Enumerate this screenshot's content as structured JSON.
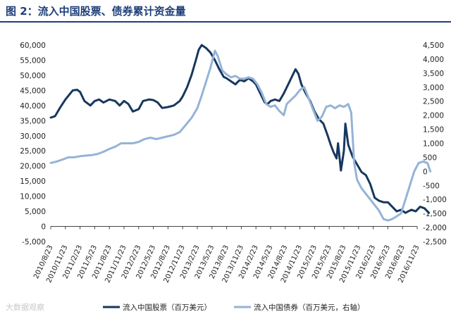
{
  "figure": {
    "title": "图 2：流入中国股票、债券累计资金量",
    "watermark": "大数据观察"
  },
  "chart_data": {
    "type": "line",
    "x_ticks": [
      "2010/8/23",
      "2010/11/23",
      "2011/2/23",
      "2011/5/23",
      "2011/8/23",
      "2011/11/23",
      "2012/2/23",
      "2012/5/23",
      "2012/8/23",
      "2012/11/23",
      "2013/2/23",
      "2013/5/23",
      "2013/8/23",
      "2013/11/23",
      "2014/2/23",
      "2014/5/23",
      "2014/8/23",
      "2014/11/23",
      "2015/2/23",
      "2015/5/23",
      "2015/8/23",
      "2015/11/23",
      "2016/2/23",
      "2016/5/23",
      "2016/8/23",
      "2016/11/23"
    ],
    "y_left": {
      "min": -5000,
      "max": 60000,
      "ticks": [
        "-5,000",
        "0",
        "5,000",
        "10,000",
        "15,000",
        "20,000",
        "25,000",
        "30,000",
        "35,000",
        "40,000",
        "45,000",
        "50,000",
        "55,000",
        "60,000"
      ]
    },
    "y_right": {
      "min": -2500,
      "max": 4500,
      "ticks": [
        "-2,500",
        "-2,000",
        "-1,500",
        "-1,000",
        "-500",
        "0",
        "500",
        "1,000",
        "1,500",
        "2,000",
        "2,500",
        "3,000",
        "3,500",
        "4,000",
        "4,500"
      ]
    },
    "legend_position": "bottom",
    "series": [
      {
        "name": "流入中国股票（百万美元）",
        "axis": "left",
        "color": "#17375e",
        "points": [
          [
            0,
            36000
          ],
          [
            0.3,
            36500
          ],
          [
            0.6,
            39000
          ],
          [
            1,
            42000
          ],
          [
            1.5,
            45000
          ],
          [
            1.8,
            45200
          ],
          [
            2,
            44500
          ],
          [
            2.3,
            41500
          ],
          [
            2.7,
            40000
          ],
          [
            3,
            41500
          ],
          [
            3.3,
            42000
          ],
          [
            3.6,
            41000
          ],
          [
            4,
            42000
          ],
          [
            4.4,
            41500
          ],
          [
            4.7,
            40000
          ],
          [
            5,
            41500
          ],
          [
            5.3,
            40500
          ],
          [
            5.6,
            38000
          ],
          [
            6,
            38800
          ],
          [
            6.3,
            41500
          ],
          [
            6.7,
            42000
          ],
          [
            7,
            41800
          ],
          [
            7.3,
            41000
          ],
          [
            7.6,
            39200
          ],
          [
            8,
            39500
          ],
          [
            8.4,
            40000
          ],
          [
            8.8,
            41500
          ],
          [
            9,
            43000
          ],
          [
            9.3,
            46000
          ],
          [
            9.6,
            50000
          ],
          [
            9.9,
            55000
          ],
          [
            10.1,
            58500
          ],
          [
            10.3,
            60000
          ],
          [
            10.6,
            59000
          ],
          [
            10.9,
            57500
          ],
          [
            11.2,
            55000
          ],
          [
            11.5,
            52000
          ],
          [
            11.8,
            49500
          ],
          [
            12,
            49000
          ],
          [
            12.3,
            48000
          ],
          [
            12.6,
            47000
          ],
          [
            12.9,
            48500
          ],
          [
            13.2,
            48000
          ],
          [
            13.5,
            49000
          ],
          [
            13.8,
            48000
          ],
          [
            14,
            47000
          ],
          [
            14.3,
            44000
          ],
          [
            14.6,
            41000
          ],
          [
            14.8,
            40500
          ],
          [
            15,
            41500
          ],
          [
            15.3,
            42000
          ],
          [
            15.6,
            41500
          ],
          [
            15.9,
            44000
          ],
          [
            16.2,
            47000
          ],
          [
            16.5,
            50000
          ],
          [
            16.7,
            52000
          ],
          [
            16.9,
            50500
          ],
          [
            17.1,
            47000
          ],
          [
            17.4,
            44000
          ],
          [
            17.7,
            41500
          ],
          [
            18,
            38000
          ],
          [
            18.3,
            35500
          ],
          [
            18.6,
            34000
          ],
          [
            18.9,
            30000
          ],
          [
            19.1,
            27000
          ],
          [
            19.3,
            24500
          ],
          [
            19.5,
            22500
          ],
          [
            19.6,
            27500
          ],
          [
            19.8,
            18500
          ],
          [
            20,
            25000
          ],
          [
            20.1,
            34000
          ],
          [
            20.3,
            27000
          ],
          [
            20.6,
            23000
          ],
          [
            20.9,
            20500
          ],
          [
            21.2,
            18000
          ],
          [
            21.5,
            17000
          ],
          [
            21.8,
            14000
          ],
          [
            22.1,
            9500
          ],
          [
            22.4,
            8500
          ],
          [
            22.7,
            8000
          ],
          [
            23,
            8000
          ],
          [
            23.3,
            6500
          ],
          [
            23.6,
            5000
          ],
          [
            23.9,
            5500
          ],
          [
            24.2,
            4500
          ],
          [
            24.6,
            5500
          ],
          [
            24.9,
            5000
          ],
          [
            25.2,
            6500
          ],
          [
            25.5,
            6000
          ],
          [
            25.8,
            4500
          ]
        ]
      },
      {
        "name": "流入中国债券（百万美元，右轴）",
        "axis": "right",
        "color": "#95b3d7",
        "points": [
          [
            0,
            300
          ],
          [
            0.4,
            350
          ],
          [
            0.8,
            420
          ],
          [
            1.2,
            500
          ],
          [
            1.6,
            500
          ],
          [
            2,
            540
          ],
          [
            2.4,
            560
          ],
          [
            2.8,
            580
          ],
          [
            3.2,
            620
          ],
          [
            3.6,
            700
          ],
          [
            4,
            800
          ],
          [
            4.4,
            880
          ],
          [
            4.8,
            1000
          ],
          [
            5.2,
            1000
          ],
          [
            5.6,
            1000
          ],
          [
            6,
            1050
          ],
          [
            6.4,
            1150
          ],
          [
            6.8,
            1200
          ],
          [
            7.2,
            1150
          ],
          [
            7.6,
            1200
          ],
          [
            8,
            1250
          ],
          [
            8.4,
            1300
          ],
          [
            8.8,
            1400
          ],
          [
            9.2,
            1650
          ],
          [
            9.6,
            1900
          ],
          [
            10,
            2250
          ],
          [
            10.3,
            2700
          ],
          [
            10.6,
            3200
          ],
          [
            10.9,
            3700
          ],
          [
            11.2,
            4300
          ],
          [
            11.4,
            4100
          ],
          [
            11.7,
            3600
          ],
          [
            12,
            3450
          ],
          [
            12.3,
            3350
          ],
          [
            12.6,
            3400
          ],
          [
            12.9,
            3300
          ],
          [
            13.2,
            3300
          ],
          [
            13.5,
            3350
          ],
          [
            13.8,
            3300
          ],
          [
            14.1,
            3100
          ],
          [
            14.4,
            2800
          ],
          [
            14.7,
            2400
          ],
          [
            15,
            2300
          ],
          [
            15.3,
            2350
          ],
          [
            15.6,
            2150
          ],
          [
            15.9,
            2000
          ],
          [
            16.1,
            2400
          ],
          [
            16.4,
            2550
          ],
          [
            16.7,
            2700
          ],
          [
            17,
            2900
          ],
          [
            17.3,
            3000
          ],
          [
            17.6,
            2600
          ],
          [
            17.9,
            2200
          ],
          [
            18.2,
            1800
          ],
          [
            18.5,
            1950
          ],
          [
            18.8,
            2300
          ],
          [
            19.1,
            2350
          ],
          [
            19.4,
            2250
          ],
          [
            19.7,
            2350
          ],
          [
            20,
            2300
          ],
          [
            20.3,
            2400
          ],
          [
            20.5,
            2100
          ],
          [
            20.7,
            300
          ],
          [
            20.9,
            -300
          ],
          [
            21.2,
            -600
          ],
          [
            21.5,
            -800
          ],
          [
            21.8,
            -1000
          ],
          [
            22.1,
            -1200
          ],
          [
            22.4,
            -1400
          ],
          [
            22.7,
            -1700
          ],
          [
            23,
            -1750
          ],
          [
            23.3,
            -1700
          ],
          [
            23.6,
            -1600
          ],
          [
            23.9,
            -1500
          ],
          [
            24.2,
            -1000
          ],
          [
            24.5,
            -500
          ],
          [
            24.8,
            0
          ],
          [
            25.1,
            300
          ],
          [
            25.4,
            350
          ],
          [
            25.7,
            300
          ],
          [
            25.9,
            0
          ]
        ]
      }
    ]
  }
}
